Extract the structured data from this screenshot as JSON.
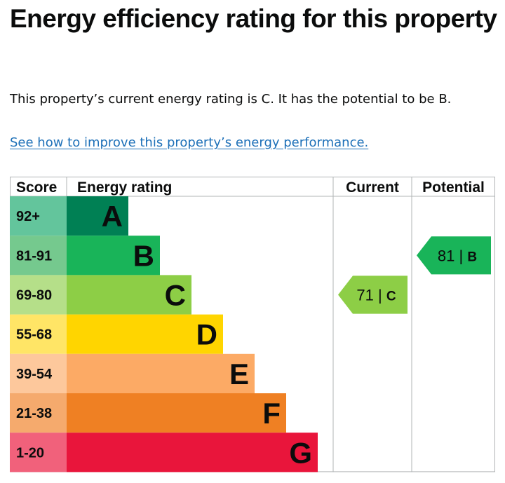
{
  "heading": "Energy efficiency rating for this property",
  "summary": "This property’s current energy rating is C. It has the potential to be B.",
  "improve_link": "See how to improve this property’s energy performance.",
  "chart_data": {
    "type": "table",
    "headers": {
      "score": "Score",
      "rating": "Energy rating",
      "current": "Current",
      "potential": "Potential"
    },
    "bands": [
      {
        "score": "92+",
        "letter": "A",
        "bg": "#008054",
        "score_bg": "#63c59c"
      },
      {
        "score": "81-91",
        "letter": "B",
        "bg": "#19b459",
        "score_bg": "#75c98e"
      },
      {
        "score": "69-80",
        "letter": "C",
        "bg": "#8dce46",
        "score_bg": "#b5df89"
      },
      {
        "score": "55-68",
        "letter": "D",
        "bg": "#ffd500",
        "score_bg": "#ffe566"
      },
      {
        "score": "39-54",
        "letter": "E",
        "bg": "#fcaa65",
        "score_bg": "#fdc89c"
      },
      {
        "score": "21-38",
        "letter": "F",
        "bg": "#ef8023",
        "score_bg": "#f5aa6d"
      },
      {
        "score": "1-20",
        "letter": "G",
        "bg": "#e9153b",
        "score_bg": "#f1617b"
      }
    ],
    "current": {
      "value": 71,
      "letter": "C",
      "label": "71 | C"
    },
    "potential": {
      "value": 81,
      "letter": "B",
      "label": "81 | B"
    }
  }
}
